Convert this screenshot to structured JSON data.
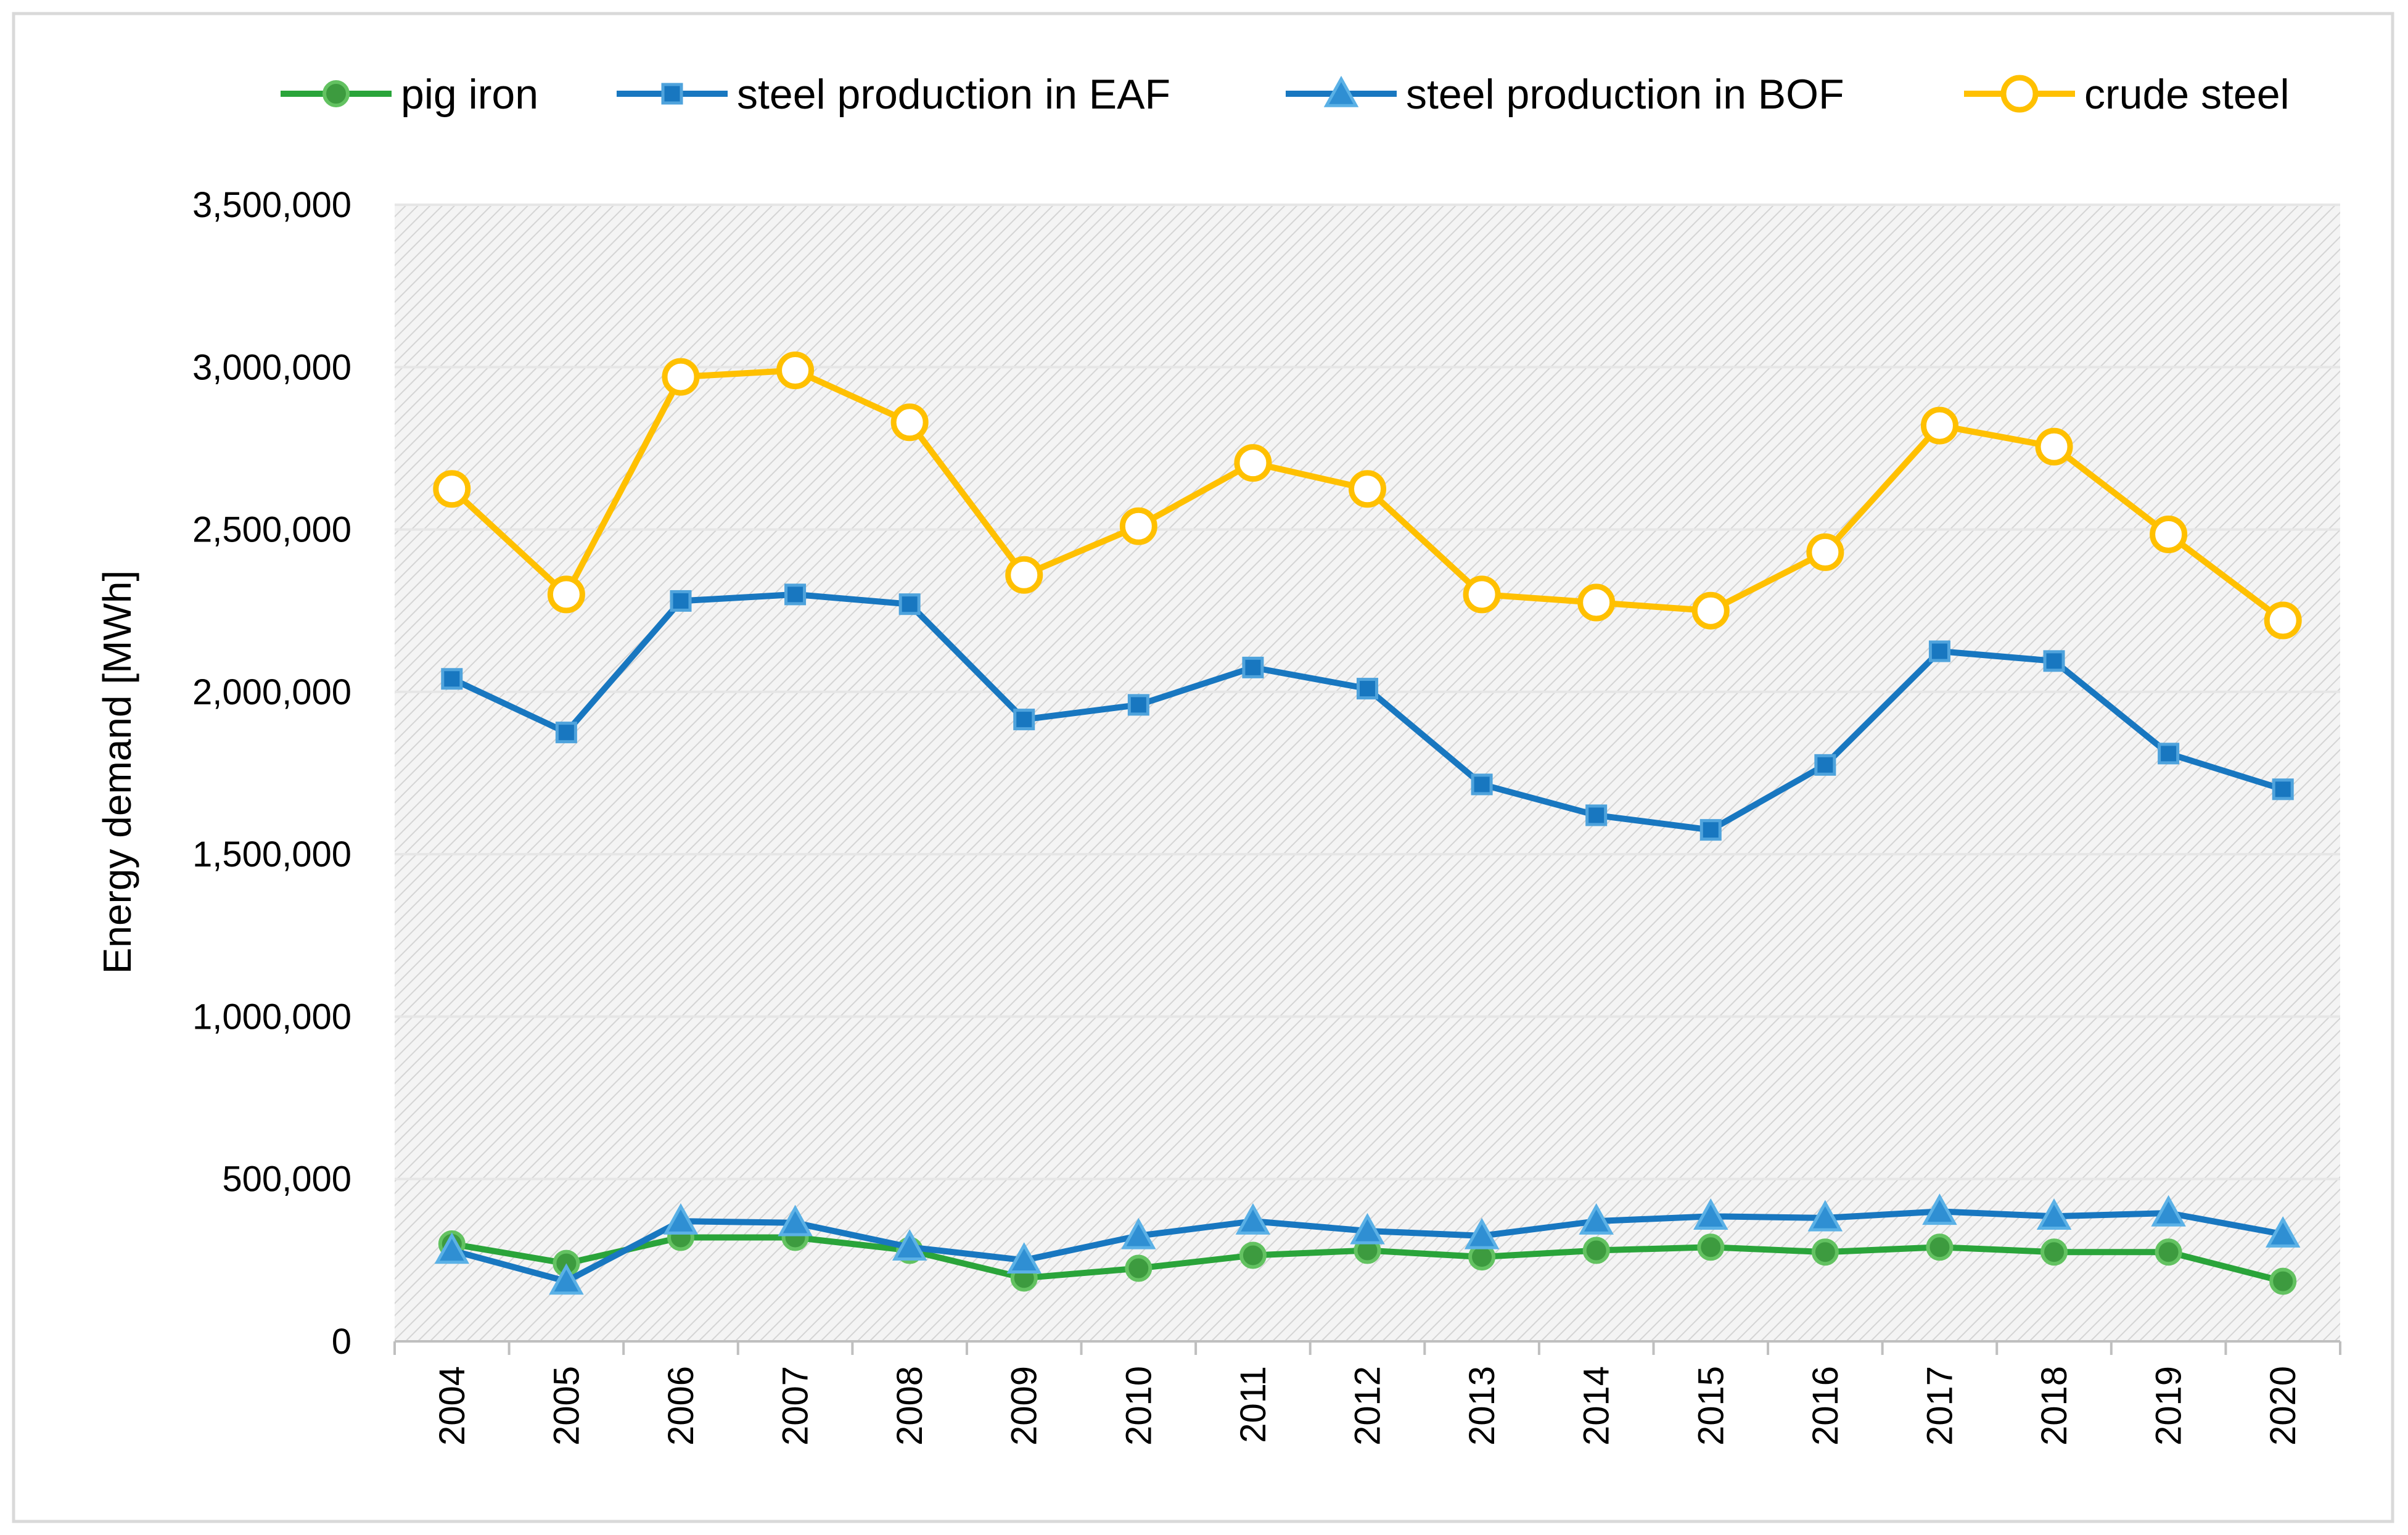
{
  "chart_data": {
    "type": "line",
    "title": "",
    "xlabel": "",
    "ylabel": "Energy demand [MWh]",
    "ylim": [
      0,
      3500000
    ],
    "ytick_values": [
      0,
      500000,
      1000000,
      1500000,
      2000000,
      2500000,
      3000000,
      3500000
    ],
    "ytick_labels": [
      "0",
      "500,000",
      "1,000,000",
      "1,500,000",
      "2,000,000",
      "2,500,000",
      "3,000,000",
      "3,500,000"
    ],
    "grid": true,
    "legend_position": "top",
    "categories": [
      "2004",
      "2005",
      "2006",
      "2007",
      "2008",
      "2009",
      "2010",
      "2011",
      "2012",
      "2013",
      "2014",
      "2015",
      "2016",
      "2017",
      "2018",
      "2019",
      "2020"
    ],
    "series": [
      {
        "name": "pig iron",
        "color": "#2AA43A",
        "marker": "circle-filled",
        "values": [
          300000,
          240000,
          320000,
          320000,
          280000,
          195000,
          225000,
          265000,
          280000,
          260000,
          280000,
          290000,
          275000,
          290000,
          275000,
          275000,
          185000
        ]
      },
      {
        "name": "steel production in EAF",
        "color": "#1877C0",
        "marker": "square",
        "values": [
          2040000,
          1875000,
          2280000,
          2300000,
          2270000,
          1915000,
          1960000,
          2075000,
          2010000,
          1715000,
          1620000,
          1575000,
          1775000,
          2125000,
          2095000,
          1810000,
          1700000
        ]
      },
      {
        "name": "steel production in BOF",
        "color": "#1877C0",
        "marker": "triangle",
        "values": [
          280000,
          185000,
          370000,
          365000,
          290000,
          250000,
          325000,
          370000,
          340000,
          325000,
          370000,
          385000,
          380000,
          400000,
          385000,
          395000,
          330000
        ]
      },
      {
        "name": "crude steel",
        "color": "#FFC000",
        "marker": "circle-open",
        "values": [
          2625000,
          2300000,
          2970000,
          2990000,
          2830000,
          2360000,
          2510000,
          2705000,
          2625000,
          2300000,
          2275000,
          2250000,
          2430000,
          2820000,
          2755000,
          2485000,
          2220000
        ]
      }
    ]
  },
  "colors": {
    "frame": "#D9D9D9",
    "plot_background": "#F2F2F2",
    "hatch": "#D6D6D6",
    "gridline": "#E6E6E6"
  }
}
